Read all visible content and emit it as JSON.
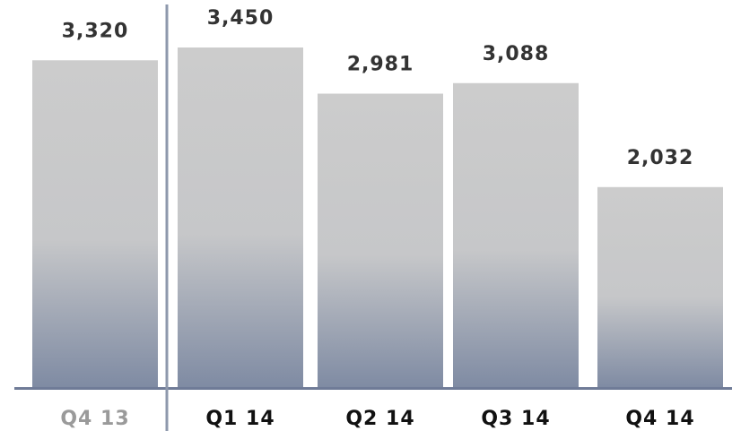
{
  "chart_data": {
    "type": "bar",
    "categories": [
      "Q4 13",
      "Q1 14",
      "Q2 14",
      "Q3 14",
      "Q4 14"
    ],
    "values": [
      3320,
      3450,
      2981,
      3088,
      2032
    ],
    "value_labels": [
      "3,320",
      "3,450",
      "2,981",
      "3,088",
      "2,032"
    ],
    "ylim": [
      0,
      3700
    ],
    "grid": false,
    "legend": "none",
    "separator_after_index": 0,
    "colors": {
      "bar_top": "#cccccc",
      "bar_mid": "#c6c7c9",
      "bar_bottom": "#7f8ba3",
      "baseline": "#6f7b97",
      "separator": "#8e98ac",
      "value_text": "#333333",
      "category_text": "#111111",
      "category_text_muted": "#9a9a9a"
    }
  }
}
